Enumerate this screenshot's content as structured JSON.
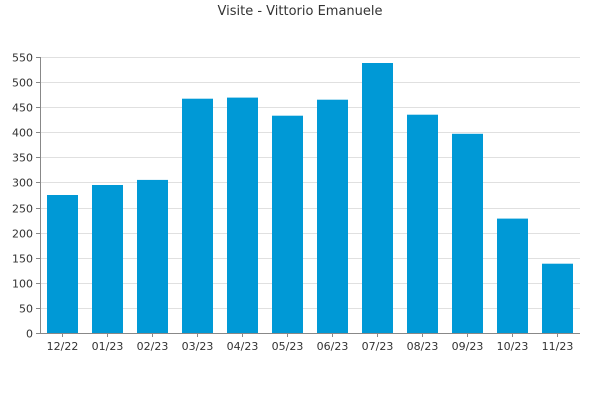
{
  "chart_data": {
    "type": "bar",
    "title": "Visite - Vittorio Emanuele",
    "categories": [
      "12/22",
      "01/23",
      "02/23",
      "03/23",
      "04/23",
      "05/23",
      "06/23",
      "07/23",
      "08/23",
      "09/23",
      "10/23",
      "11/23"
    ],
    "values": [
      275,
      295,
      305,
      467,
      469,
      433,
      465,
      538,
      435,
      397,
      228,
      138
    ],
    "ylim": [
      0,
      550
    ],
    "yticks": [
      0,
      50,
      100,
      150,
      200,
      250,
      300,
      350,
      400,
      450,
      500,
      550
    ],
    "xlabel": "",
    "ylabel": "",
    "grid": true,
    "legend": "none",
    "bar_color": "#0099d6"
  }
}
